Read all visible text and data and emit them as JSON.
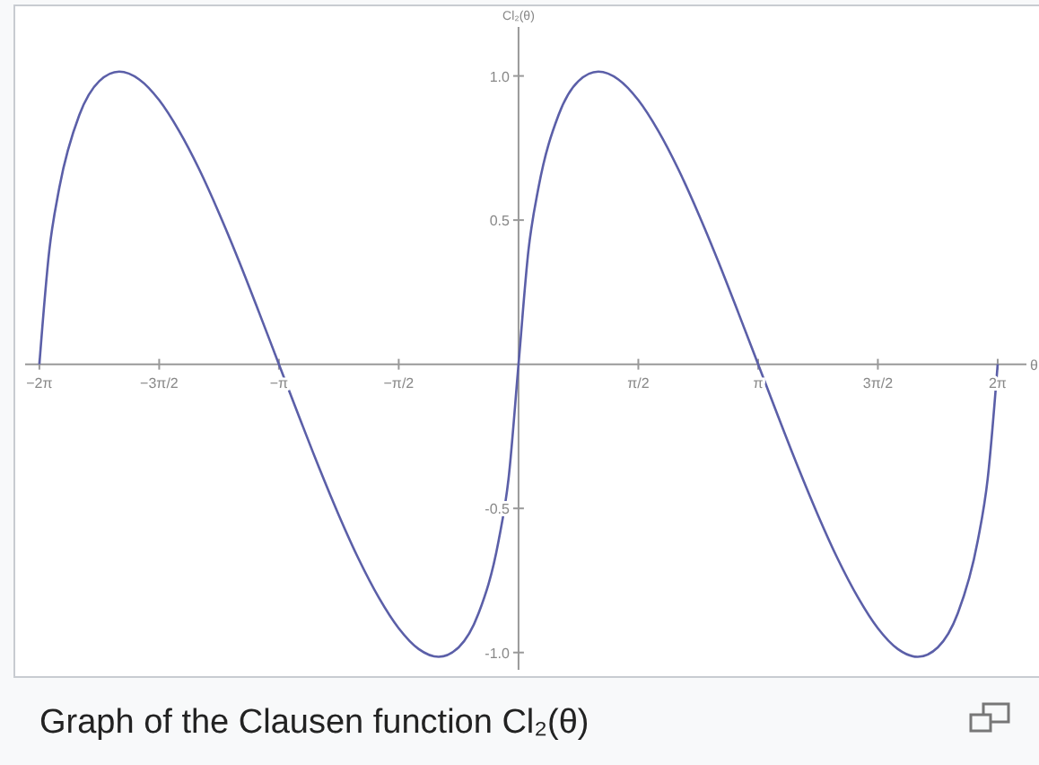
{
  "chart_data": {
    "type": "line",
    "title": "Graph of the Clausen function Cl₂(θ)",
    "xlabel": "θ",
    "ylabel": "Cl₂(θ)",
    "x": [
      -6.283,
      -6.152,
      -6.021,
      -5.76,
      -5.498,
      -5.236,
      -4.974,
      -4.712,
      -4.451,
      -4.189,
      -3.927,
      -3.665,
      -3.403,
      -3.142,
      -2.88,
      -2.618,
      -2.356,
      -2.094,
      -1.833,
      -1.571,
      -1.309,
      -1.047,
      -0.785,
      -0.524,
      -0.262,
      -0.131,
      0,
      0.131,
      0.262,
      0.524,
      0.785,
      1.047,
      1.309,
      1.571,
      1.833,
      2.094,
      2.356,
      2.618,
      2.88,
      3.142,
      3.403,
      3.665,
      3.927,
      4.189,
      4.451,
      4.712,
      4.974,
      5.236,
      5.498,
      5.76,
      6.021,
      6.152,
      6.283
    ],
    "series": [
      {
        "color": "#5b5fa8",
        "values": [
          0,
          0.397,
          0.613,
          0.864,
          0.982,
          1.015,
          0.988,
          0.916,
          0.809,
          0.677,
          0.524,
          0.357,
          0.18,
          0,
          -0.18,
          -0.357,
          -0.524,
          -0.677,
          -0.809,
          -0.916,
          -0.988,
          -1.015,
          -0.982,
          -0.864,
          -0.613,
          -0.397,
          0,
          0.397,
          0.613,
          0.864,
          0.982,
          1.015,
          0.988,
          0.916,
          0.809,
          0.677,
          0.524,
          0.357,
          0.18,
          0,
          -0.18,
          -0.357,
          -0.524,
          -0.677,
          -0.809,
          -0.916,
          -0.988,
          -1.015,
          -0.982,
          -0.864,
          -0.613,
          -0.397,
          0
        ]
      }
    ],
    "xlim": [
      -6.47,
      6.66
    ],
    "ylim": [
      -1.06,
      1.17
    ],
    "xticks": [
      {
        "value": -6.283,
        "label": "−2π"
      },
      {
        "value": -4.712,
        "label": "−3π/2"
      },
      {
        "value": -3.142,
        "label": "−π"
      },
      {
        "value": -1.571,
        "label": "−π/2"
      },
      {
        "value": 1.571,
        "label": "π/2"
      },
      {
        "value": 3.142,
        "label": "π"
      },
      {
        "value": 4.712,
        "label": "3π/2"
      },
      {
        "value": 6.283,
        "label": "2π"
      }
    ],
    "yticks": [
      {
        "value": 1,
        "label": "1.0"
      },
      {
        "value": 0.5,
        "label": "0.5"
      },
      {
        "value": -0.5,
        "label": "-0.5"
      },
      {
        "value": -1,
        "label": "-1.0"
      }
    ],
    "grid": false,
    "marker": "none",
    "line_style": "solid"
  }
}
